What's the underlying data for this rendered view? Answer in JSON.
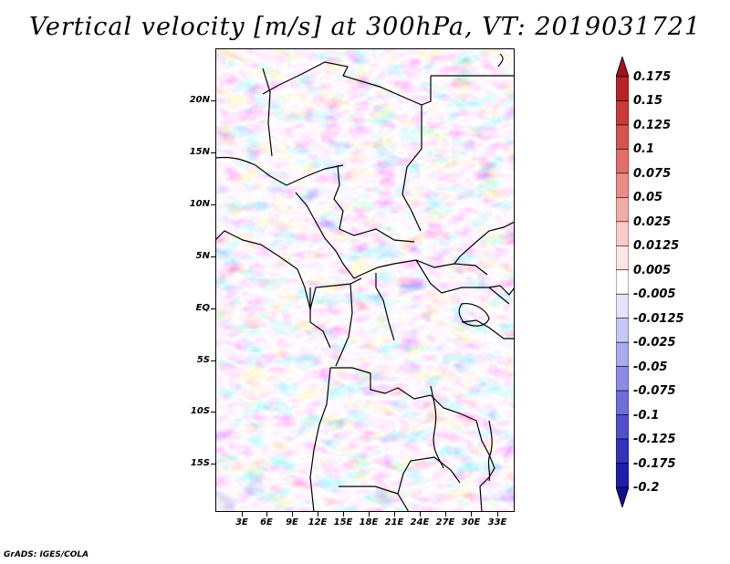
{
  "title": "Vertical velocity [m/s] at 300hPa, VT: 2019031721",
  "credit": "GrADS: IGES/COLA",
  "lat_labels": [
    "20N",
    "15N",
    "10N",
    "5N",
    "EQ",
    "5S",
    "10S",
    "15S"
  ],
  "lon_labels": [
    "3E",
    "6E",
    "9E",
    "12E",
    "15E",
    "18E",
    "21E",
    "24E",
    "27E",
    "30E",
    "33E"
  ],
  "colorbar": {
    "labels": [
      "0.175",
      "0.15",
      "0.125",
      "0.1",
      "0.075",
      "0.05",
      "0.025",
      "0.0125",
      "0.005",
      "-0.005",
      "-0.0125",
      "-0.025",
      "-0.05",
      "-0.075",
      "-0.1",
      "-0.125",
      "-0.175",
      "-0.2"
    ],
    "colors": [
      "#a3121e",
      "#b8232b",
      "#c93a38",
      "#d75350",
      "#e26d69",
      "#ec8b86",
      "#f4aaa6",
      "#f9cac8",
      "#fce6e5",
      "#ffffff",
      "#e4e4fb",
      "#c8c8f5",
      "#aaaaef",
      "#8c8ce6",
      "#6e6edb",
      "#5050cd",
      "#3232bb",
      "#1e1ea6",
      "#12128e"
    ]
  },
  "map": {
    "variable": "Vertical velocity",
    "units": "m/s",
    "level": "300hPa",
    "valid_time": "2019031721",
    "lon_range": [
      0.5,
      34.5
    ],
    "lat_range": [
      -19,
      25
    ]
  }
}
